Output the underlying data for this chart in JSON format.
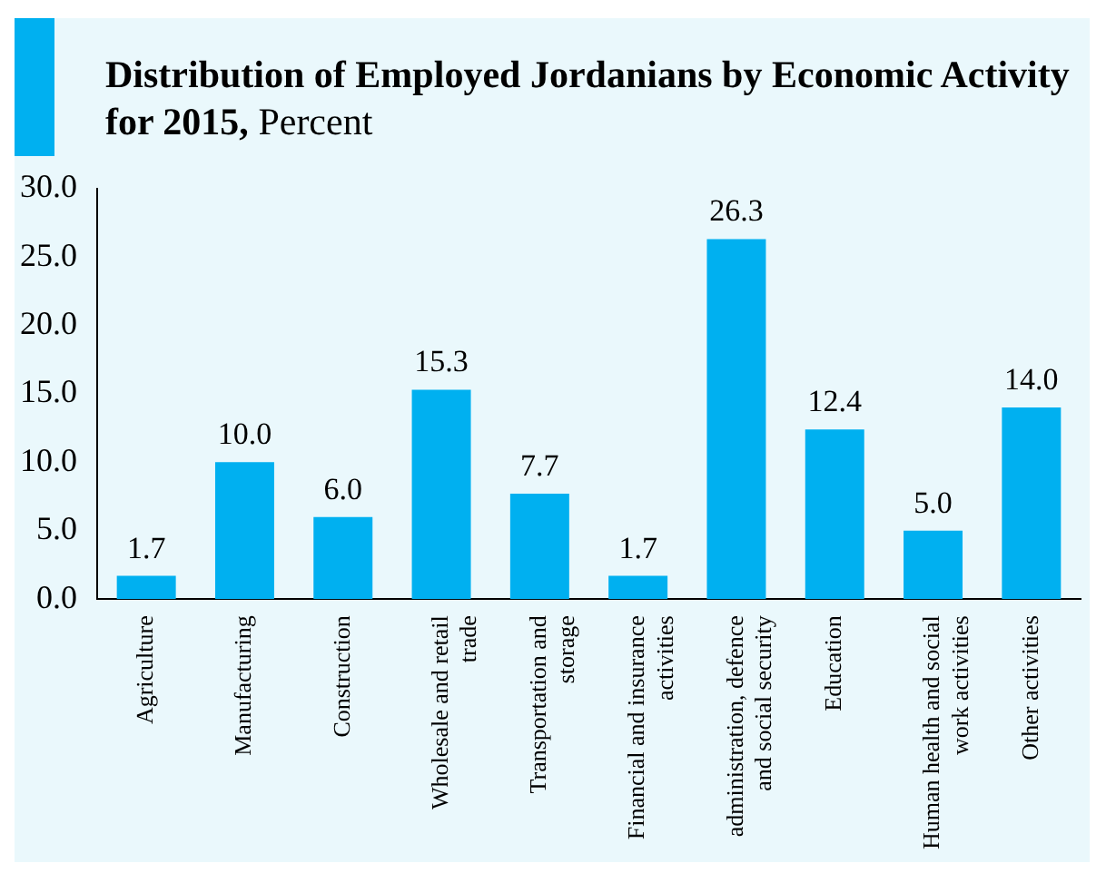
{
  "chart_data": {
    "type": "bar",
    "title": "Distribution of   Employed Jordanians  by Economic Activity for 2015,",
    "subtitle": "Percent",
    "categories": [
      "Agriculture",
      "Manufacturing",
      "Construction",
      "Wholesale and retail trade",
      "Transportation and storage",
      "Financial and insurance activities",
      "administration, defence and social security",
      "Education",
      "Human health and social work activities",
      "Other activities"
    ],
    "values": [
      1.7,
      10.0,
      6.0,
      15.3,
      7.7,
      1.7,
      26.3,
      12.4,
      5.0,
      14.0
    ],
    "value_labels": [
      "1.7",
      "10.0",
      "6.0",
      "15.3",
      "7.7",
      "1.7",
      "26.3",
      "12.4",
      "5.0",
      "14.0"
    ],
    "color": "#00b0f0",
    "ylim": [
      0,
      30
    ],
    "yticks": [
      {
        "value": 0,
        "label": "0.0"
      },
      {
        "value": 5,
        "label": "5.0"
      },
      {
        "value": 10,
        "label": "10.0"
      },
      {
        "value": 15,
        "label": "15.0"
      },
      {
        "value": 20,
        "label": "20.0"
      },
      {
        "value": 25,
        "label": "25.0"
      },
      {
        "value": 30,
        "label": "30.0"
      }
    ],
    "grid": false,
    "legend": false
  }
}
